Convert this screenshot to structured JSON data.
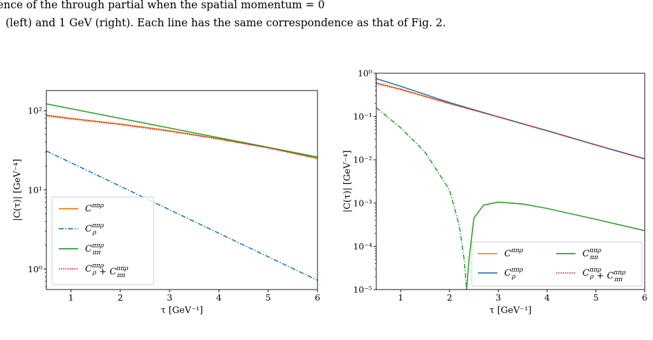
{
  "caption": {
    "line1": "ence of the  through  partial  when the spatial momentum  = 0",
    "line2": "(left) and 1 GeV (right). Each line has the same correspondence as that of Fig. 2."
  },
  "chart_data": [
    {
      "type": "line",
      "yscale": "log",
      "xlabel": "τ [GeV⁻¹]",
      "ylabel": "|C(τ)| [GeV⁻⁴]",
      "xlim": [
        0.5,
        6
      ],
      "ylim": [
        0.55,
        180
      ],
      "xticks": [
        1,
        2,
        3,
        4,
        5,
        6
      ],
      "yticks": [
        {
          "value": 1,
          "label": "10⁰"
        },
        {
          "value": 10,
          "label": "10¹"
        },
        {
          "value": 100,
          "label": "10²"
        }
      ],
      "legend": "lower-left",
      "series": [
        {
          "name": "C^{ππρ}",
          "color": "#ff7f0e",
          "style": "solid",
          "x": [
            0.5,
            1,
            2,
            3,
            4,
            5,
            6
          ],
          "y": [
            88,
            80,
            68,
            56,
            44,
            34,
            25
          ]
        },
        {
          "name": "C_ρ^{ππρ}",
          "color": "#1f77b4",
          "style": "dashdot",
          "x": [
            0.5,
            6
          ],
          "y": [
            31,
            0.72
          ]
        },
        {
          "name": "C_ππ^{ππρ}",
          "color": "#2ca02c",
          "style": "solid",
          "x": [
            0.5,
            6
          ],
          "y": [
            122,
            26
          ]
        },
        {
          "name": "C_ρ^{ππρ} + C_ππ^{ππρ}",
          "color": "#d62728",
          "style": "dotted",
          "x": [
            0.5,
            1,
            2,
            3,
            4,
            5,
            6
          ],
          "y": [
            86,
            79,
            67,
            55,
            44,
            34,
            25
          ]
        }
      ]
    },
    {
      "type": "line",
      "yscale": "log",
      "xlabel": "τ [GeV⁻¹]",
      "ylabel": "|C(τ)| [GeV⁻⁴]",
      "xlim": [
        0.5,
        6
      ],
      "ylim": [
        1e-05,
        1
      ],
      "xticks": [
        1,
        2,
        3,
        4,
        5,
        6
      ],
      "yticks": [
        {
          "value": 1,
          "label": "10⁰"
        },
        {
          "value": 0.1,
          "label": "10⁻¹"
        },
        {
          "value": 0.01,
          "label": "10⁻²"
        },
        {
          "value": 0.001,
          "label": "10⁻³"
        },
        {
          "value": 0.0001,
          "label": "10⁻⁴"
        },
        {
          "value": 1e-05,
          "label": "10⁻⁵"
        }
      ],
      "legend": "lower-right",
      "series": [
        {
          "name": "C^{ππρ}",
          "color": "#ff7f0e",
          "style": "solid",
          "x": [
            0.5,
            1,
            2,
            3,
            4,
            5,
            6
          ],
          "y": [
            0.6,
            0.43,
            0.2,
            0.098,
            0.047,
            0.022,
            0.0105
          ]
        },
        {
          "name": "C_ρ^{ππρ}",
          "color": "#1f77b4",
          "style": "solid",
          "x": [
            0.5,
            1,
            2,
            3,
            4,
            5,
            6
          ],
          "y": [
            0.75,
            0.5,
            0.21,
            0.098,
            0.047,
            0.022,
            0.0105
          ]
        },
        {
          "name": "C_ππ^{ππρ}",
          "color": "#2ca02c",
          "style": "dashdot-then-solid",
          "x": [
            0.5,
            1,
            1.5,
            2,
            2.2,
            2.3,
            2.35,
            2.4,
            2.5,
            2.7,
            3,
            3.5,
            4,
            5,
            6
          ],
          "y": [
            0.16,
            0.055,
            0.015,
            0.002,
            0.0003,
            5e-05,
            1e-05,
            5e-05,
            0.00045,
            0.0009,
            0.00105,
            0.00095,
            0.00075,
            0.00042,
            0.00023
          ]
        },
        {
          "name": "C_ρ^{ππρ} + C_ππ^{ππρ}",
          "color": "#d62728",
          "style": "dotted",
          "x": [
            0.5,
            1,
            2,
            3,
            4,
            5,
            6
          ],
          "y": [
            0.58,
            0.42,
            0.2,
            0.098,
            0.047,
            0.022,
            0.0105
          ]
        }
      ]
    }
  ]
}
